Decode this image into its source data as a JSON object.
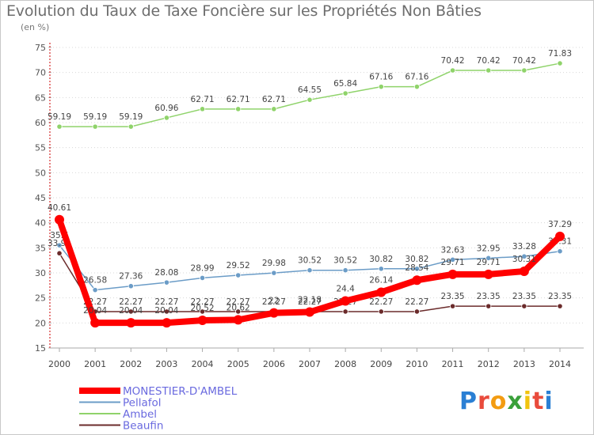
{
  "title": "Evolution du Taux de Taxe Foncière sur les Propriétés Non Bâties",
  "unit": "(en %)",
  "logo": {
    "letters": [
      "P",
      "r",
      "o",
      "x",
      "i",
      "t",
      "i"
    ],
    "colors": [
      "#2a7fd4",
      "#e94b3c",
      "#f39c12",
      "#3aa03a",
      "#f1c40f",
      "#e94b3c",
      "#2a7fd4"
    ]
  },
  "chart_data": {
    "type": "line",
    "title": "Evolution du Taux de Taxe Foncière sur les Propriétés Non Bâties",
    "ylabel": "(en %)",
    "xlabel": "",
    "x": [
      "2000",
      "2001",
      "2002",
      "2003",
      "2004",
      "2005",
      "2006",
      "2007",
      "2008",
      "2009",
      "2010",
      "2011",
      "2012",
      "2013",
      "2014"
    ],
    "ylim": [
      15,
      75
    ],
    "yticks": [
      15,
      20,
      25,
      30,
      35,
      40,
      45,
      50,
      55,
      60,
      65,
      70,
      75
    ],
    "legend_position": "bottom-left",
    "series": [
      {
        "name": "MONESTIER-D'AMBEL",
        "color": "#ff0000",
        "width": 8,
        "values": [
          40.61,
          20.04,
          20.04,
          20.04,
          20.52,
          20.62,
          22.0,
          22.18,
          24.4,
          26.14,
          28.54,
          29.71,
          29.71,
          30.31,
          37.29
        ],
        "labels": [
          "40.61",
          "20.04",
          "20.04",
          "20.04",
          "20.52",
          "20.62",
          "22",
          "22.18",
          "24.4",
          "26.14",
          "28.54",
          "29.71",
          "29.71",
          "30.31",
          "37.29"
        ]
      },
      {
        "name": "Pellafol",
        "color": "#6b9cc7",
        "width": 1.5,
        "values": [
          35.5,
          26.58,
          27.36,
          28.08,
          28.99,
          29.52,
          29.98,
          30.52,
          30.52,
          30.82,
          30.82,
          32.63,
          32.95,
          33.28,
          34.31
        ],
        "labels": [
          "35.5",
          "26.58",
          "27.36",
          "28.08",
          "28.99",
          "29.52",
          "29.98",
          "30.52",
          "30.52",
          "30.82",
          "30.82",
          "32.63",
          "32.95",
          "33.28",
          "34.31"
        ]
      },
      {
        "name": "Ambel",
        "color": "#8fd36a",
        "width": 1.5,
        "values": [
          59.19,
          59.19,
          59.19,
          60.96,
          62.71,
          62.71,
          62.71,
          64.55,
          65.84,
          67.16,
          67.16,
          70.42,
          70.42,
          70.42,
          71.83
        ],
        "labels": [
          "59.19",
          "59.19",
          "59.19",
          "60.96",
          "62.71",
          "62.71",
          "62.71",
          "64.55",
          "65.84",
          "67.16",
          "67.16",
          "70.42",
          "70.42",
          "70.42",
          "71.83"
        ]
      },
      {
        "name": "Beaufin",
        "color": "#6b2b2b",
        "width": 1.5,
        "values": [
          33.91,
          22.27,
          22.27,
          22.27,
          22.27,
          22.27,
          22.27,
          22.27,
          22.27,
          22.27,
          22.27,
          23.35,
          23.35,
          23.35,
          23.35
        ],
        "labels": [
          "33.91",
          "22.27",
          "22.27",
          "22.27",
          "22.27",
          "22.27",
          "22.27",
          "22.27",
          "22.27",
          "22.27",
          "22.27",
          "23.35",
          "23.35",
          "23.35",
          "23.35"
        ]
      }
    ]
  }
}
